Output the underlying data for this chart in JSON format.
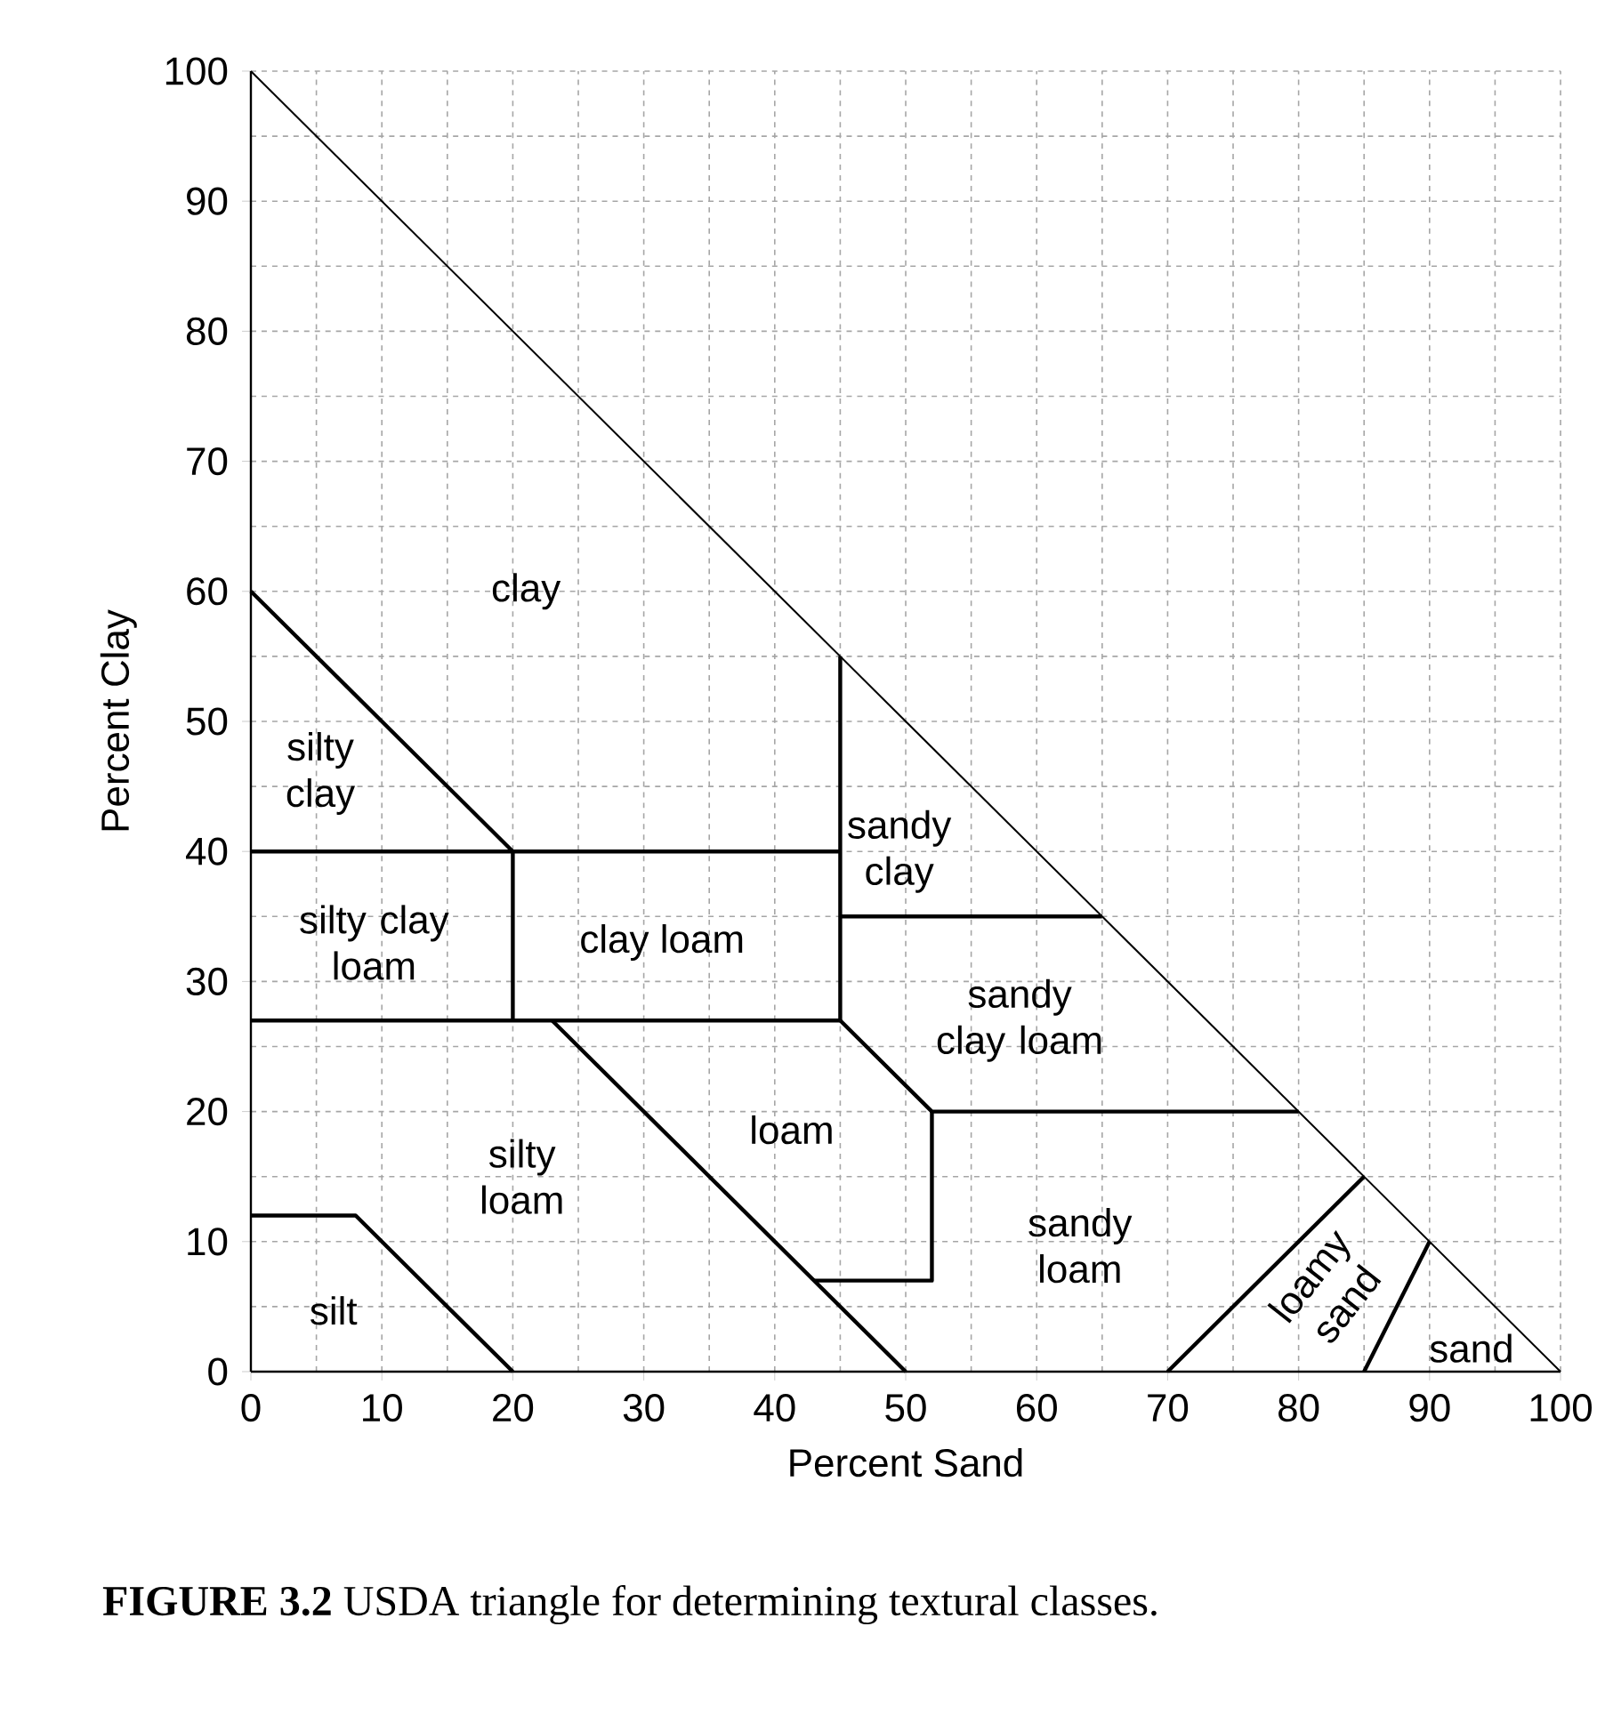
{
  "chart_data": {
    "type": "line",
    "xlabel": "Percent Sand",
    "ylabel": "Percent Clay",
    "xlim": [
      0,
      100
    ],
    "ylim": [
      0,
      100
    ],
    "xticks": [
      0,
      10,
      20,
      30,
      40,
      50,
      60,
      70,
      80,
      90,
      100
    ],
    "yticks": [
      0,
      10,
      20,
      30,
      40,
      50,
      60,
      70,
      80,
      90,
      100
    ],
    "grid": true,
    "series": [
      {
        "color": "#000000",
        "x": [
          0,
          20
        ],
        "values": [
          60,
          40
        ]
      },
      {
        "color": "#000000",
        "x": [
          0,
          45
        ],
        "values": [
          40,
          40
        ]
      },
      {
        "color": "#000000",
        "x": [
          20,
          20
        ],
        "values": [
          40,
          27
        ]
      },
      {
        "color": "#000000",
        "x": [
          0,
          45
        ],
        "values": [
          27,
          27
        ]
      },
      {
        "color": "#000000",
        "x": [
          45,
          45
        ],
        "values": [
          55,
          27
        ]
      },
      {
        "color": "#000000",
        "x": [
          45,
          65
        ],
        "values": [
          35,
          35
        ]
      },
      {
        "color": "#000000",
        "x": [
          45,
          52,
          80
        ],
        "values": [
          27,
          20,
          20
        ]
      },
      {
        "color": "#000000",
        "x": [
          52,
          52,
          43
        ],
        "values": [
          20,
          7,
          7
        ]
      },
      {
        "color": "#000000",
        "x": [
          23,
          50
        ],
        "values": [
          27,
          0
        ]
      },
      {
        "color": "#000000",
        "x": [
          0,
          8,
          20
        ],
        "values": [
          12,
          12,
          0
        ]
      },
      {
        "color": "#000000",
        "x": [
          70,
          85
        ],
        "values": [
          0,
          15
        ]
      },
      {
        "color": "#000000",
        "x": [
          85,
          90
        ],
        "values": [
          0,
          10
        ]
      }
    ],
    "annotations": [
      "clay",
      "silty clay",
      "sandy clay",
      "silty clay loam",
      "clay loam",
      "sandy clay loam",
      "loam",
      "silty loam",
      "sandy loam",
      "silt",
      "loamy sand",
      "sand",
      "**FIGURE 3.2** USDA triangle for determining textural classes."
    ]
  }
}
